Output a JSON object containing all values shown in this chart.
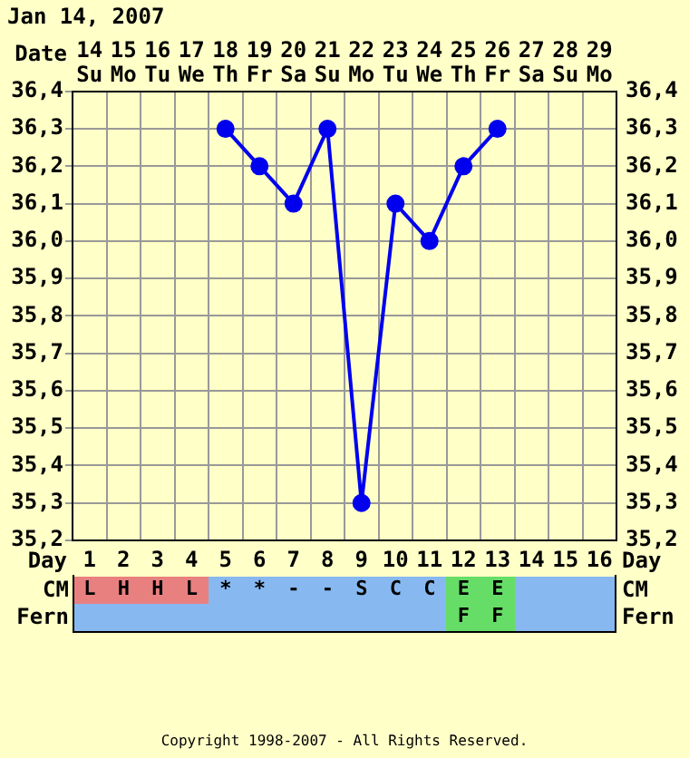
{
  "chart_data": [
    {
      "type": "line",
      "title": "Jan 14, 2007",
      "xlabel": "Date",
      "x2label": "Day",
      "categories": [
        "14 Su",
        "15 Mo",
        "16 Tu",
        "17 We",
        "18 Th",
        "19 Fr",
        "20 Sa",
        "21 Su",
        "22 Mo",
        "23 Tu",
        "24 We",
        "25 Th",
        "26 Fr",
        "27 Sa",
        "28 Su",
        "29 Mo"
      ],
      "series": [
        {
          "color": "#0000ee",
          "values": [
            null,
            null,
            null,
            null,
            36.3,
            36.2,
            36.1,
            36.3,
            35.3,
            36.1,
            36.0,
            36.2,
            36.3,
            null,
            null,
            null
          ]
        }
      ],
      "ylim": [
        35.2,
        36.4
      ],
      "yticks": [
        {
          "value": 35.2,
          "label": "35,2"
        },
        {
          "value": 35.3,
          "label": "35,3"
        },
        {
          "value": 35.4,
          "label": "35,4"
        },
        {
          "value": 35.5,
          "label": "35,5"
        },
        {
          "value": 35.6,
          "label": "35,6"
        },
        {
          "value": 35.7,
          "label": "35,7"
        },
        {
          "value": 35.8,
          "label": "35,8"
        },
        {
          "value": 35.9,
          "label": "35,9"
        },
        {
          "value": 36.0,
          "label": "36,0"
        },
        {
          "value": 36.1,
          "label": "36,1"
        },
        {
          "value": 36.2,
          "label": "36,2"
        },
        {
          "value": 36.3,
          "label": "36,3"
        },
        {
          "value": 36.4,
          "label": "36,4"
        }
      ],
      "y2lim": [
        35.2,
        36.4
      ],
      "y2ticks": [
        {
          "value": 35.2,
          "label": "35,2"
        },
        {
          "value": 35.3,
          "label": "35,3"
        },
        {
          "value": 35.4,
          "label": "35,4"
        },
        {
          "value": 35.5,
          "label": "35,5"
        },
        {
          "value": 35.6,
          "label": "35,6"
        },
        {
          "value": 35.7,
          "label": "35,7"
        },
        {
          "value": 35.8,
          "label": "35,8"
        },
        {
          "value": 35.9,
          "label": "35,9"
        },
        {
          "value": 36.0,
          "label": "36,0"
        },
        {
          "value": 36.1,
          "label": "36,1"
        },
        {
          "value": 36.2,
          "label": "36,2"
        },
        {
          "value": 36.3,
          "label": "36,3"
        },
        {
          "value": 36.4,
          "label": "36,4"
        }
      ],
      "x2lim": [
        0.5,
        16.5
      ],
      "x2ticks": [
        1,
        2,
        3,
        4,
        5,
        6,
        7,
        8,
        9,
        10,
        11,
        12,
        13,
        14,
        15,
        16
      ],
      "grid": true,
      "marker": "circle",
      "line_style": "solid"
    },
    {
      "type": "other",
      "y_categories": [
        "CM",
        "Fern"
      ],
      "cell_labels": [
        [
          "L",
          "H",
          "H",
          "L",
          "*",
          "*",
          "-",
          "-",
          "S",
          "C",
          "C",
          "E",
          "E",
          null,
          null,
          null
        ],
        [
          null,
          null,
          null,
          null,
          null,
          null,
          null,
          null,
          null,
          null,
          null,
          "F",
          "F",
          null,
          null,
          null
        ]
      ],
      "colors": [
        [
          "#e88080",
          "#e88080",
          "#e88080",
          "#e88080",
          "#88b8f0",
          "#88b8f0",
          "#88b8f0",
          "#88b8f0",
          "#88b8f0",
          "#88b8f0",
          "#88b8f0",
          "#66dd66",
          "#66dd66",
          "#88b8f0",
          "#88b8f0",
          "#88b8f0"
        ],
        [
          "#88b8f0",
          "#88b8f0",
          "#88b8f0",
          "#88b8f0",
          "#88b8f0",
          "#88b8f0",
          "#88b8f0",
          "#88b8f0",
          "#88b8f0",
          "#88b8f0",
          "#88b8f0",
          "#66dd66",
          "#66dd66",
          "#88b8f0",
          "#88b8f0",
          "#88b8f0"
        ]
      ],
      "annotations": [
        "Copyright 1998-2007 - All Rights Reserved."
      ]
    }
  ]
}
